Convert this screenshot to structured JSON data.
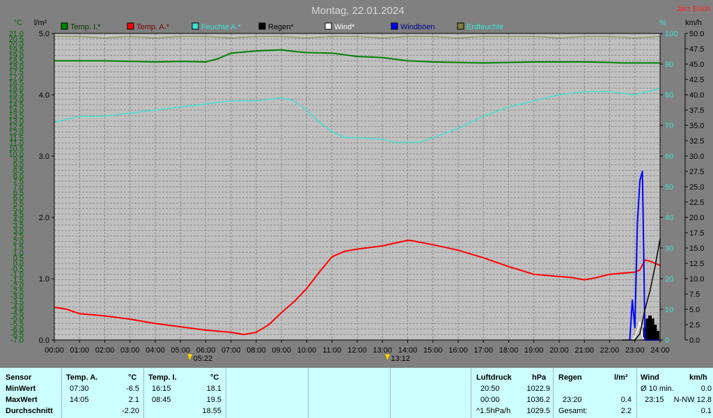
{
  "header": {
    "title": "Montag, 22.01.2024",
    "author": "Jarz Erich"
  },
  "units": {
    "temp": "°C",
    "rain": "l/m²",
    "humidity": "%",
    "wind": "km/h"
  },
  "legend": [
    {
      "label": "Temp. I.*",
      "color": "#008000"
    },
    {
      "label": "Temp. A.*",
      "color": "#ff0000"
    },
    {
      "label": "Feuchte A.*",
      "color": "#40e0d0"
    },
    {
      "label": "Regen*",
      "color": "#000000"
    },
    {
      "label": "Wind*",
      "color": "#ffffff"
    },
    {
      "label": "Windböen",
      "color": "#0000ff"
    },
    {
      "label": "Erdfeuchte",
      "color": "#808040"
    }
  ],
  "chart_data": {
    "type": "line",
    "title": "Montag, 22.01.2024",
    "x_range": [
      "00:00",
      "24:00"
    ],
    "x_ticks": [
      "00:00",
      "01:00",
      "02:00",
      "03:00",
      "04:00",
      "05:00",
      "06:00",
      "07:00",
      "08:00",
      "09:00",
      "10:00",
      "11:00",
      "12:00",
      "13:00",
      "14:00",
      "15:00",
      "16:00",
      "17:00",
      "18:00",
      "19:00",
      "20:00",
      "21:00",
      "22:00",
      "23:00",
      "24:00"
    ],
    "axes": {
      "temp": {
        "range": [
          -7.0,
          21.0
        ],
        "step": 0.5,
        "ticks": [
          "21.0",
          "20.5",
          "20.0",
          "19.5",
          "19.0",
          "18.5",
          "18.0",
          "17.5",
          "17.0",
          "16.5",
          "16.0",
          "15.5",
          "15.0",
          "14.5",
          "14.0",
          "13.5",
          "13.0",
          "12.5",
          "12.0",
          "11.5",
          "11.0",
          "10.5",
          "10.0",
          "9.5",
          "9.0",
          "8.5",
          "8.0",
          "7.5",
          "7.0",
          "6.5",
          "6.0",
          "5.5",
          "5.0",
          "4.5",
          "4.0",
          "3.5",
          "3.0",
          "2.5",
          "2.0",
          "1.5",
          "1.0",
          "0.5",
          "0.0",
          "-0.5",
          "-1.0",
          "-1.5",
          "-2.0",
          "-2.5",
          "-3.0",
          "-3.5",
          "-4.0",
          "-4.5",
          "-5.0",
          "-5.5",
          "-6.0",
          "-6.5",
          "-7.0"
        ]
      },
      "rain": {
        "range": [
          0.0,
          5.0
        ],
        "ticks": [
          "5.0",
          "4.0",
          "3.0",
          "2.0",
          "1.0",
          "0.0"
        ]
      },
      "humidity": {
        "range": [
          0,
          100
        ],
        "ticks": [
          "100",
          "90",
          "80",
          "70",
          "60",
          "50",
          "40",
          "30",
          "20",
          "10",
          "0"
        ]
      },
      "wind": {
        "range": [
          0.0,
          50.0
        ],
        "ticks": [
          "50.0",
          "47.5",
          "45.0",
          "42.5",
          "40.0",
          "37.5",
          "35.0",
          "32.5",
          "30.0",
          "27.5",
          "25.0",
          "22.5",
          "20.0",
          "17.5",
          "15.0",
          "12.5",
          "10.0",
          "7.5",
          "5.0",
          "2.5",
          "0.0"
        ]
      }
    },
    "grid": true,
    "series": [
      {
        "name": "Temp. I.*",
        "axis": "temp",
        "color": "#008000",
        "x": [
          0,
          2,
          4,
          5,
          6,
          6.5,
          7,
          8,
          9,
          9.5,
          10,
          11,
          12,
          13,
          14,
          15,
          16,
          17,
          18,
          19,
          20,
          21,
          22,
          22.5,
          23,
          24
        ],
        "y": [
          18.5,
          18.5,
          18.4,
          18.45,
          18.4,
          18.7,
          19.2,
          19.4,
          19.5,
          19.35,
          19.25,
          19.2,
          18.9,
          18.8,
          18.5,
          18.4,
          18.35,
          18.3,
          18.35,
          18.4,
          18.4,
          18.4,
          18.35,
          18.3,
          18.3,
          18.3
        ]
      },
      {
        "name": "Temp. A.*",
        "axis": "temp",
        "color": "#ff0000",
        "x": [
          0,
          0.5,
          1,
          2,
          3,
          4,
          5,
          6,
          7,
          7.5,
          8,
          8.5,
          9,
          9.5,
          10,
          10.5,
          11,
          11.5,
          12,
          13,
          14,
          14.1,
          15,
          16,
          17,
          18,
          19,
          20,
          20.5,
          21,
          21.5,
          22,
          23,
          23.2,
          23.4,
          23.6,
          24
        ],
        "y": [
          -4.0,
          -4.2,
          -4.6,
          -4.8,
          -5.1,
          -5.5,
          -5.8,
          -6.1,
          -6.3,
          -6.5,
          -6.3,
          -5.6,
          -4.5,
          -3.5,
          -2.3,
          -0.8,
          0.6,
          1.1,
          1.3,
          1.6,
          2.1,
          2.1,
          1.7,
          1.2,
          0.5,
          -0.3,
          -1.0,
          -1.2,
          -1.3,
          -1.5,
          -1.3,
          -1.0,
          -0.8,
          -0.6,
          0.3,
          0.2,
          -0.2
        ]
      },
      {
        "name": "Feuchte A.*",
        "axis": "humidity",
        "color": "#40e0d0",
        "x": [
          0,
          1,
          2,
          3,
          4,
          5,
          6,
          7,
          8,
          9,
          9.5,
          10,
          10.5,
          11,
          11.5,
          12,
          13,
          13.5,
          14,
          14.5,
          15,
          16,
          17,
          18,
          19,
          20,
          21,
          22,
          23,
          23.5,
          24
        ],
        "y": [
          71,
          73,
          73,
          74,
          75,
          76,
          77,
          78,
          78,
          79,
          78,
          75,
          71,
          68,
          66,
          66,
          65.5,
          64.5,
          64.5,
          64.5,
          66,
          69,
          73,
          76,
          78,
          80,
          81,
          81,
          80,
          81,
          82
        ]
      },
      {
        "name": "Regen*",
        "axis": "rain",
        "color": "#000000",
        "x": [
          22.5,
          23,
          23.2,
          23.4,
          23.6,
          23.8,
          24
        ],
        "y": [
          0.0,
          0.0,
          0.1,
          0.5,
          0.8,
          1.2,
          1.65
        ]
      },
      {
        "name": "Windböen",
        "axis": "wind",
        "color": "#0000ff",
        "x": [
          22.8,
          22.9,
          23.0,
          23.1,
          23.2,
          23.3,
          23.35,
          23.4,
          23.6,
          24
        ],
        "y": [
          0,
          6.5,
          2,
          19,
          26,
          27.5,
          15,
          0,
          0,
          0
        ]
      },
      {
        "name": "Wind*",
        "axis": "wind",
        "color": "#ffffff",
        "x": [
          22.9,
          23.0,
          23.1,
          23.2,
          23.3,
          23.4,
          23.6,
          23.8,
          24
        ],
        "y": [
          0,
          0.5,
          1.5,
          3.0,
          0.5,
          0,
          0,
          0,
          0
        ]
      },
      {
        "name": "Erdfeuchte",
        "axis": "humidity",
        "color": "#808040",
        "x": [
          0,
          1,
          2,
          3,
          4,
          5,
          6,
          7,
          8,
          9,
          10,
          11,
          12,
          13,
          14,
          15,
          16,
          17,
          18,
          19,
          20,
          21,
          22,
          23,
          24
        ],
        "y": [
          99,
          99,
          98.5,
          99,
          98.5,
          99,
          99,
          98.5,
          99,
          99,
          98.5,
          99,
          99,
          98.5,
          99,
          99,
          98.5,
          99,
          99,
          99,
          98.5,
          99,
          99,
          98.5,
          99
        ]
      }
    ],
    "rain_bars": {
      "x": [
        23.4,
        23.5,
        23.6,
        23.7,
        23.8,
        23.9
      ],
      "y": [
        0.2,
        0.35,
        0.4,
        0.35,
        0.25,
        0.15
      ],
      "color": "#000000"
    },
    "markers": [
      {
        "time": "05:22",
        "x": 5.37
      },
      {
        "time": "13:12",
        "x": 13.2
      }
    ]
  },
  "stats": {
    "sensor": {
      "header": "Sensor",
      "rows": [
        "MinWert",
        "MaxWert",
        "Durchschnitt"
      ]
    },
    "temp_a": {
      "header": "Temp. A.",
      "unit": "°C",
      "min_time": "07:30",
      "min_val": "-6.5",
      "max_time": "14:05",
      "max_val": "2.1",
      "avg": "-2.20"
    },
    "temp_i": {
      "header": "Temp. I.",
      "unit": "°C",
      "min_time": "16:15",
      "min_val": "18.1",
      "max_time": "08:45",
      "max_val": "19.5",
      "avg": "18.55"
    },
    "luftdruck": {
      "header": "Luftdruck",
      "unit": "hPa",
      "min_time": "20:50",
      "min_val": "1022.9",
      "max_time": "00:00",
      "max_val": "1036.2",
      "avg_label": "^1.5hPa/h",
      "avg": "1029.5"
    },
    "regen": {
      "header": "Regen",
      "unit": "l/m²",
      "row2_time": "23:20",
      "row2_val": "0.4",
      "row3_label": "Gesamt:",
      "row3_val": "2.2"
    },
    "wind": {
      "header": "Wind",
      "unit": "km/h",
      "row1_label": "Ø 10 min.",
      "row1_val": "0.0",
      "row2_time": "23:15",
      "row2_val": "N-NW 12.8",
      "row3_val": "0.1"
    }
  }
}
